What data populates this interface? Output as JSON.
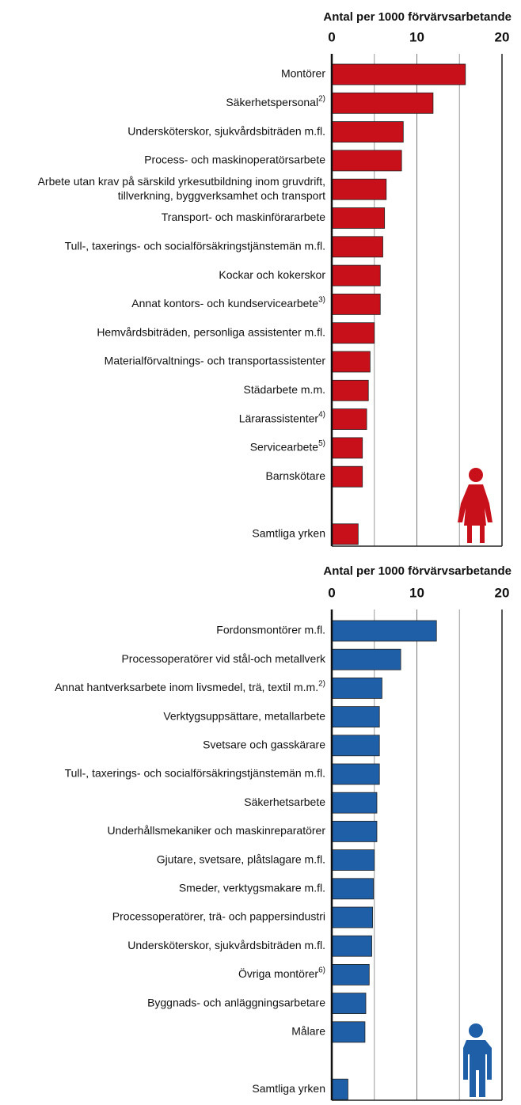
{
  "chart_data": [
    {
      "type": "bar",
      "orientation": "horizontal",
      "axis_title": "Antal per 1000 förvärvsarbetande",
      "categories": [
        "Montörer",
        "Säkerhetspersonal",
        "Undersköterskor, sjukvårdsbiträden m.fl.",
        "Process- och maskinoperatörsarbete",
        "Arbete utan krav på särskild yrkesutbildning inom gruvdrift, tillverkning, byggverksamhet och transport",
        "Transport- och maskinförararbete",
        "Tull-, taxerings- och socialförsäkringstjänstemän m.fl.",
        "Kockar och kokerskor",
        "Annat kontors- och kundservicearbete",
        "Hemvårdsbiträden, personliga assistenter m.fl.",
        "Materialförvaltnings- och transportassistenter",
        "Städarbete m.m.",
        "Lärarassistenter",
        "Servicearbete",
        "Barnskötare",
        null,
        "Samtliga yrken"
      ],
      "notes": [
        null,
        "2)",
        null,
        null,
        null,
        null,
        null,
        null,
        "3)",
        null,
        null,
        null,
        "4)",
        "5)",
        null,
        null,
        null
      ],
      "values": [
        15.7,
        11.9,
        8.4,
        8.2,
        6.4,
        6.2,
        6.0,
        5.7,
        5.7,
        5.0,
        4.5,
        4.3,
        4.1,
        3.6,
        3.6,
        null,
        3.1
      ],
      "color": "#c8101a",
      "xlim": [
        0,
        20
      ],
      "xticks": [
        0,
        10,
        20
      ],
      "minor_xticks": [
        5,
        15
      ],
      "grid": true
    },
    {
      "type": "bar",
      "orientation": "horizontal",
      "axis_title": "Antal per 1000 förvärvsarbetande",
      "categories": [
        "Fordonsmontörer m.fl.",
        "Processoperatörer vid stål-och metallverk",
        "Annat hantverksarbete inom livsmedel, trä, textil m.m.",
        "Verktygsuppsättare, metallarbete",
        "Svetsare och gasskärare",
        "Tull-, taxerings- och socialförsäkringstjänstemän m.fl.",
        "Säkerhetsarbete",
        "Underhållsmekaniker och maskinreparatörer",
        "Gjutare, svetsare, plåtslagare m.fl.",
        "Smeder, verktygsmakare m.fl.",
        "Processoperatörer, trä- och pappersindustri",
        "Undersköterskor, sjukvårdsbiträden m.fl.",
        "Övriga montörer",
        "Byggnads- och anläggningsarbetare",
        "Målare",
        null,
        "Samtliga yrken"
      ],
      "notes": [
        null,
        null,
        "2)",
        null,
        null,
        null,
        null,
        null,
        null,
        null,
        null,
        null,
        "6)",
        null,
        null,
        null,
        null
      ],
      "values": [
        12.3,
        8.1,
        5.9,
        5.6,
        5.6,
        5.6,
        5.3,
        5.3,
        5.0,
        4.9,
        4.8,
        4.7,
        4.4,
        4.0,
        3.9,
        null,
        1.9
      ],
      "color": "#1f5fa8",
      "xlim": [
        0,
        20
      ],
      "xticks": [
        0,
        10,
        20
      ],
      "minor_xticks": [
        5,
        15
      ],
      "grid": true
    }
  ]
}
